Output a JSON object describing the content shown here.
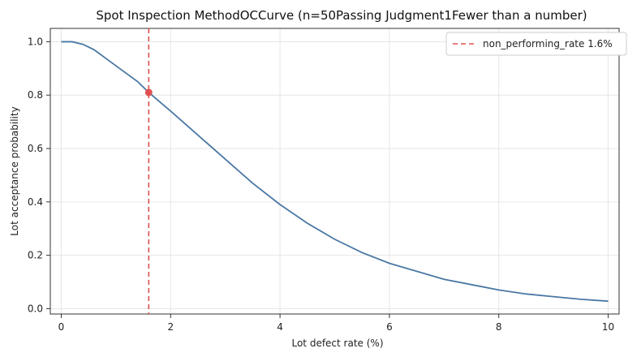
{
  "chart_data": {
    "type": "line",
    "title": "Spot Inspection MethodOCCurve (n=50Passing Judgment1Fewer than a number)",
    "xlabel": "Lot defect rate (%)",
    "ylabel": "Lot acceptance probability",
    "xlim": [
      -0.2,
      10.2
    ],
    "ylim": [
      -0.02,
      1.05
    ],
    "x_ticks": [
      0,
      2,
      4,
      6,
      8,
      10
    ],
    "y_ticks": [
      0.0,
      0.2,
      0.4,
      0.6,
      0.8,
      1.0
    ],
    "x_tick_labels": [
      "0",
      "2",
      "4",
      "6",
      "8",
      "10"
    ],
    "y_tick_labels": [
      "0.0",
      "0.2",
      "0.4",
      "0.6",
      "0.8",
      "1.0"
    ],
    "grid": true,
    "legend_position": "top-right",
    "series": [
      {
        "color": "#4a78a4",
        "x": [
          0,
          0.2,
          0.4,
          0.6,
          0.8,
          1.0,
          1.2,
          1.4,
          1.6,
          2.0,
          2.5,
          3.0,
          3.5,
          4.0,
          4.5,
          5.0,
          5.5,
          6.0,
          6.5,
          7.0,
          7.5,
          8.0,
          8.5,
          9.0,
          9.5,
          10.0
        ],
        "y": [
          1.0,
          1.0,
          0.99,
          0.97,
          0.94,
          0.91,
          0.88,
          0.85,
          0.81,
          0.74,
          0.65,
          0.56,
          0.47,
          0.39,
          0.32,
          0.26,
          0.21,
          0.17,
          0.14,
          0.11,
          0.09,
          0.07,
          0.055,
          0.045,
          0.035,
          0.028
        ]
      }
    ],
    "reference_line": {
      "name": "non_performing_rate 1.6%",
      "x": 1.6,
      "color": "#e05050"
    },
    "marker_point": {
      "x": 1.6,
      "y": 0.81,
      "color": "#e05050"
    }
  }
}
